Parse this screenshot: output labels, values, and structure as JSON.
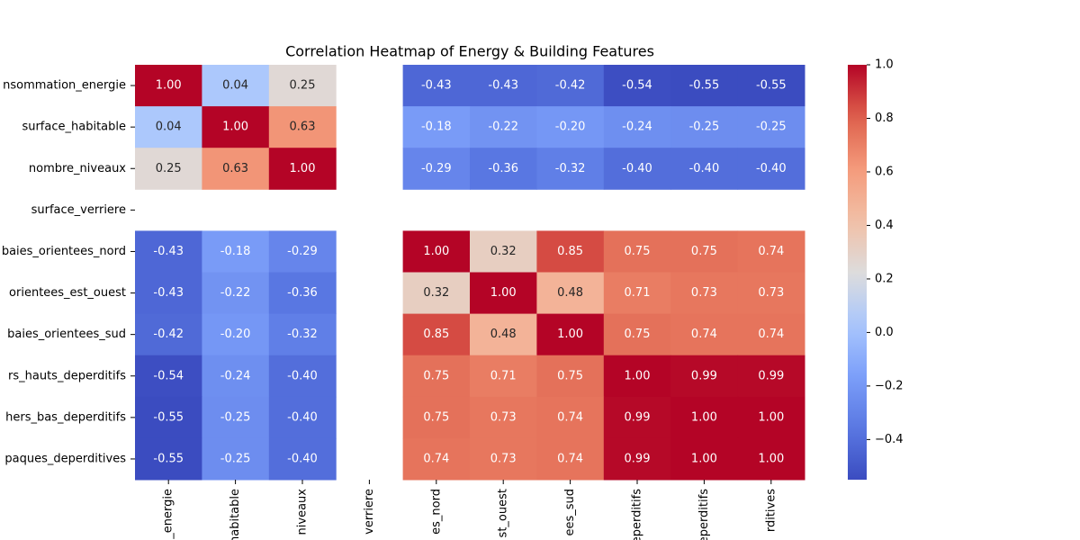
{
  "chart_data": {
    "type": "heatmap",
    "title": "Correlation Heatmap of Energy & Building Features",
    "colormap": "coolwarm",
    "y_categories": [
      "nsommation_energie",
      "surface_habitable",
      "nombre_niveaux",
      "surface_verriere",
      "baies_orientees_nord",
      "orientees_est_ouest",
      "baies_orientees_sud",
      "rs_hauts_deperditifs",
      "hers_bas_deperditifs",
      "paques_deperditives"
    ],
    "x_categories": [
      "_energie",
      "habitable",
      "niveaux",
      "verriere",
      "es_nord",
      "st_ouest",
      "ees_sud",
      "deperditifs",
      "deperditifs",
      "rditives"
    ],
    "values": [
      [
        1.0,
        0.04,
        0.25,
        null,
        -0.43,
        -0.43,
        -0.42,
        -0.54,
        -0.55,
        -0.55
      ],
      [
        0.04,
        1.0,
        0.63,
        null,
        -0.18,
        -0.22,
        -0.2,
        -0.24,
        -0.25,
        -0.25
      ],
      [
        0.25,
        0.63,
        1.0,
        null,
        -0.29,
        -0.36,
        -0.32,
        -0.4,
        -0.4,
        -0.4
      ],
      [
        null,
        null,
        null,
        null,
        null,
        null,
        null,
        null,
        null,
        null
      ],
      [
        -0.43,
        -0.18,
        -0.29,
        null,
        1.0,
        0.32,
        0.85,
        0.75,
        0.75,
        0.74
      ],
      [
        -0.43,
        -0.22,
        -0.36,
        null,
        0.32,
        1.0,
        0.48,
        0.71,
        0.73,
        0.73
      ],
      [
        -0.42,
        -0.2,
        -0.32,
        null,
        0.85,
        0.48,
        1.0,
        0.75,
        0.74,
        0.74
      ],
      [
        -0.54,
        -0.24,
        -0.4,
        null,
        0.75,
        0.71,
        0.75,
        1.0,
        0.99,
        0.99
      ],
      [
        -0.55,
        -0.25,
        -0.4,
        null,
        0.75,
        0.73,
        0.74,
        0.99,
        1.0,
        1.0
      ],
      [
        -0.55,
        -0.25,
        -0.4,
        null,
        0.74,
        0.73,
        0.74,
        0.99,
        1.0,
        1.0
      ]
    ],
    "value_labels": [
      [
        "1.00",
        "0.04",
        "0.25",
        null,
        "-0.43",
        "-0.43",
        "-0.42",
        "-0.54",
        "-0.55",
        "-0.55"
      ],
      [
        "0.04",
        "1.00",
        "0.63",
        null,
        "-0.18",
        "-0.22",
        "-0.20",
        "-0.24",
        "-0.25",
        "-0.25"
      ],
      [
        "0.25",
        "0.63",
        "1.00",
        null,
        "-0.29",
        "-0.36",
        "-0.32",
        "-0.40",
        "-0.40",
        "-0.40"
      ],
      [
        null,
        null,
        null,
        null,
        null,
        null,
        null,
        null,
        null,
        null
      ],
      [
        "-0.43",
        "-0.18",
        "-0.29",
        null,
        "1.00",
        "0.32",
        "0.85",
        "0.75",
        "0.75",
        "0.74"
      ],
      [
        "-0.43",
        "-0.22",
        "-0.36",
        null,
        "0.32",
        "1.00",
        "0.48",
        "0.71",
        "0.73",
        "0.73"
      ],
      [
        "-0.42",
        "-0.20",
        "-0.32",
        null,
        "0.85",
        "0.48",
        "1.00",
        "0.75",
        "0.74",
        "0.74"
      ],
      [
        "-0.54",
        "-0.24",
        "-0.40",
        null,
        "0.75",
        "0.71",
        "0.75",
        "1.00",
        "0.99",
        "0.99"
      ],
      [
        "-0.55",
        "-0.25",
        "-0.40",
        null,
        "0.75",
        "0.73",
        "0.74",
        "0.99",
        "1.00",
        "1.00"
      ],
      [
        "-0.55",
        "-0.25",
        "-0.40",
        null,
        "0.74",
        "0.73",
        "0.74",
        "0.99",
        "1.00",
        "1.00"
      ]
    ],
    "clim": [
      -0.55,
      1.0
    ],
    "cticks": [
      {
        "value": -0.4,
        "label": "−0.4"
      },
      {
        "value": -0.2,
        "label": "−0.2"
      },
      {
        "value": 0.0,
        "label": "0.0"
      },
      0.2,
      0.4,
      0.6,
      0.8,
      {
        "value": 1.0,
        "label": "1.0"
      }
    ]
  }
}
